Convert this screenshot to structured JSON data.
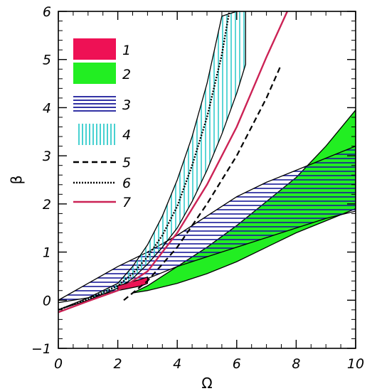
{
  "chart_data": {
    "type": "area",
    "xlabel": "Ω",
    "ylabel": "β",
    "xlim": [
      0,
      10
    ],
    "ylim": [
      -1,
      6
    ],
    "x_ticks": [
      "0",
      "2",
      "4",
      "6",
      "8",
      "10"
    ],
    "y_ticks": [
      "−1",
      "0",
      "1",
      "2",
      "3",
      "4",
      "5",
      "6"
    ],
    "grid": false,
    "legend_position": "top-left",
    "colors": {
      "red": "#ee1155",
      "green": "#22ee22",
      "blue": "#1a1a99",
      "cyan": "#33cccc",
      "crimson": "#cc2255"
    },
    "series": [
      {
        "name": "1",
        "kind": "solid-band",
        "color": "#ee1155",
        "x": [
          2.0,
          2.4,
          2.8,
          3.0
        ],
        "lower": [
          0.2,
          0.25,
          0.3,
          0.35
        ],
        "upper": [
          0.3,
          0.37,
          0.44,
          0.48
        ]
      },
      {
        "name": "2",
        "kind": "solid-band",
        "color": "#22ee22",
        "x": [
          2.5,
          3,
          4,
          5,
          6,
          7,
          8,
          9,
          10
        ],
        "lower": [
          0.15,
          0.2,
          0.35,
          0.55,
          0.8,
          1.1,
          1.4,
          1.65,
          1.9
        ],
        "upper": [
          0.15,
          0.3,
          0.7,
          1.1,
          1.55,
          2.05,
          2.55,
          3.2,
          3.95
        ]
      },
      {
        "name": "3",
        "kind": "hatched-band-horizontal",
        "color": "#1a1a99",
        "x": [
          0,
          1,
          2,
          3,
          4,
          5,
          6,
          7,
          8,
          9,
          10
        ],
        "lower": [
          -0.05,
          0.05,
          0.2,
          0.45,
          0.7,
          0.9,
          1.1,
          1.3,
          1.5,
          1.7,
          1.85
        ],
        "upper": [
          0.0,
          0.35,
          0.7,
          1.0,
          1.35,
          1.75,
          2.15,
          2.45,
          2.7,
          2.95,
          3.2
        ]
      },
      {
        "name": "4",
        "kind": "hatched-band-vertical",
        "color": "#33cccc",
        "x": [
          0,
          1,
          2,
          2.5,
          3,
          3.5,
          4,
          4.5,
          5,
          5.5,
          6,
          6.3
        ],
        "lower": [
          -0.2,
          0.0,
          0.25,
          0.45,
          0.75,
          1.1,
          1.5,
          2.05,
          2.7,
          3.45,
          4.3,
          4.9
        ],
        "upper": [
          -0.2,
          0.05,
          0.35,
          0.7,
          1.15,
          1.75,
          2.5,
          3.4,
          4.5,
          5.9,
          6.0,
          6.0
        ]
      },
      {
        "name": "5",
        "kind": "dashed-line",
        "color": "#000000",
        "x": [
          2.2,
          3,
          4,
          5,
          6,
          7,
          7.5
        ],
        "y": [
          0.0,
          0.4,
          1.1,
          2.0,
          3.0,
          4.2,
          4.9
        ]
      },
      {
        "name": "6",
        "kind": "dotted-line",
        "color": "#000000",
        "x": [
          0,
          1,
          2,
          2.5,
          3,
          3.5,
          4,
          4.5,
          5,
          5.5,
          5.75
        ],
        "y": [
          -0.2,
          0.02,
          0.3,
          0.55,
          0.9,
          1.35,
          1.95,
          2.8,
          3.8,
          5.1,
          6.0
        ]
      },
      {
        "name": "7",
        "kind": "solid-line",
        "color": "#cc2255",
        "x": [
          0,
          1,
          2,
          3,
          4,
          5,
          6,
          7,
          7.7
        ],
        "y": [
          -0.25,
          -0.02,
          0.2,
          0.6,
          1.4,
          2.4,
          3.6,
          5.05,
          6.0
        ]
      }
    ]
  }
}
